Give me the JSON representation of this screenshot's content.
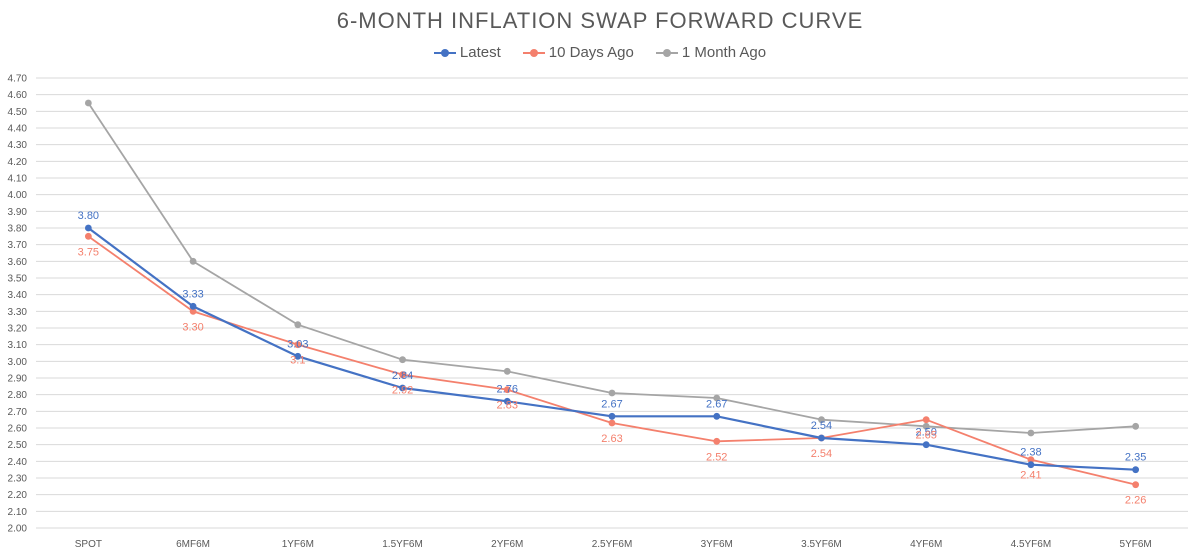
{
  "chart_data": {
    "type": "line",
    "title": "6-MONTH INFLATION SWAP FORWARD CURVE",
    "xlabel": "",
    "ylabel": "",
    "categories": [
      "SPOT",
      "6MF6M",
      "1YF6M",
      "1.5YF6M",
      "2YF6M",
      "2.5YF6M",
      "3YF6M",
      "3.5YF6M",
      "4YF6M",
      "4.5YF6M",
      "5YF6M"
    ],
    "ylim": [
      2.0,
      4.7
    ],
    "ytick_step": 0.1,
    "grid": true,
    "legend_position": "top-center",
    "series": [
      {
        "name": "Latest",
        "color": "#4472C4",
        "values": [
          3.8,
          3.33,
          3.03,
          2.84,
          2.76,
          2.67,
          2.67,
          2.54,
          2.5,
          2.38,
          2.35
        ],
        "labels": [
          "3.80",
          "3.33",
          "3.03",
          "2.84",
          "2.76",
          "2.67",
          "2.67",
          "2.54",
          "2.50",
          "2.38",
          "2.35"
        ]
      },
      {
        "name": "10 Days Ago",
        "color": "#F4806D",
        "values": [
          3.75,
          3.3,
          3.1,
          2.92,
          2.83,
          2.63,
          2.52,
          2.54,
          2.65,
          2.41,
          2.26
        ],
        "labels": [
          "3.75",
          "3.30",
          "3.1",
          "2.92",
          "2.83",
          "2.63",
          "2.52",
          "2.54",
          "2.65",
          "2.41",
          "2.26"
        ]
      },
      {
        "name": "1 Month Ago",
        "color": "#A5A5A5",
        "values": [
          4.55,
          3.6,
          3.22,
          3.01,
          2.94,
          2.81,
          2.78,
          2.65,
          2.61,
          2.57,
          2.61
        ],
        "labels": []
      }
    ]
  }
}
